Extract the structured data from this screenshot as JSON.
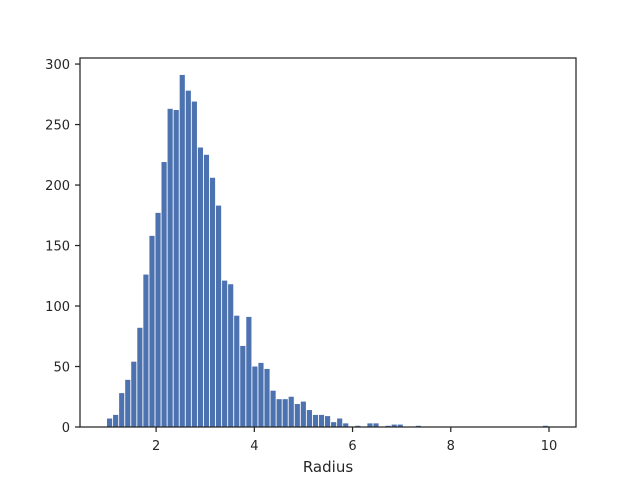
{
  "chart_data": {
    "type": "bar",
    "title": "",
    "xlabel": "Radius",
    "ylabel": "",
    "xlim": [
      0.45,
      10.55
    ],
    "ylim": [
      0,
      305
    ],
    "xticks": [
      2,
      4,
      6,
      8,
      10
    ],
    "yticks": [
      0,
      50,
      100,
      150,
      200,
      250,
      300
    ],
    "grid": false,
    "legend": "none",
    "bar_color": "#4c72b0",
    "bins": {
      "start": 1.0,
      "width": 0.1233,
      "counts": [
        7,
        10,
        28,
        39,
        54,
        82,
        126,
        158,
        177,
        219,
        263,
        262,
        291,
        278,
        269,
        231,
        225,
        206,
        183,
        121,
        118,
        92,
        67,
        91,
        50,
        53,
        48,
        30,
        23,
        23,
        25,
        19,
        21,
        14,
        10,
        10,
        9,
        4,
        7,
        3,
        0,
        1,
        0,
        3,
        3,
        0,
        1,
        2,
        2,
        0,
        0,
        1,
        0,
        0,
        0,
        0,
        0,
        0,
        0,
        0,
        0,
        0,
        0,
        0,
        0,
        0,
        0,
        0,
        0,
        0,
        0,
        0,
        1
      ]
    }
  }
}
